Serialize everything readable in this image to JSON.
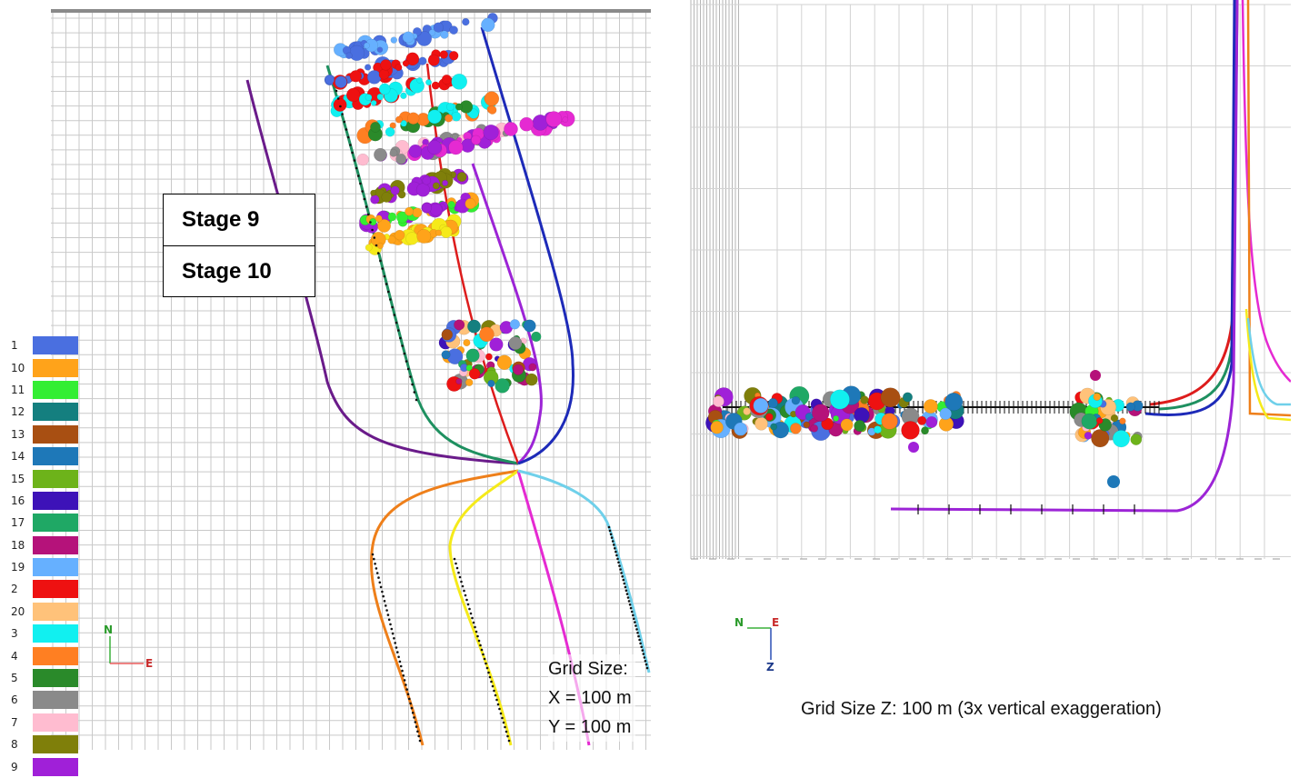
{
  "left_panel": {
    "stage_labels": [
      "Stage 9",
      "Stage 10"
    ],
    "grid_note": [
      "Grid Size:",
      "X = 100 m",
      "Y = 100 m"
    ],
    "compass": {
      "north": "N",
      "east": "E"
    }
  },
  "right_panel": {
    "grid_note": "Grid Size Z: 100 m (3x vertical exaggeration)",
    "compass": {
      "north": "N",
      "east": "E",
      "down": "Z"
    }
  },
  "legend": [
    {
      "label": "1",
      "color": "#4a6fe0"
    },
    {
      "label": "10",
      "color": "#ffa31a"
    },
    {
      "label": "11",
      "color": "#33ee33"
    },
    {
      "label": "12",
      "color": "#147f7f"
    },
    {
      "label": "13",
      "color": "#a84f12"
    },
    {
      "label": "14",
      "color": "#1e78b8"
    },
    {
      "label": "15",
      "color": "#6db31a"
    },
    {
      "label": "16",
      "color": "#3d12b8"
    },
    {
      "label": "17",
      "color": "#1fa865"
    },
    {
      "label": "18",
      "color": "#b5127a"
    },
    {
      "label": "19",
      "color": "#66b0ff"
    },
    {
      "label": "2",
      "color": "#ee1111"
    },
    {
      "label": "20",
      "color": "#ffc27a"
    },
    {
      "label": "3",
      "color": "#11f0f0"
    },
    {
      "label": "4",
      "color": "#ff7f22"
    },
    {
      "label": "5",
      "color": "#2a8a2a"
    },
    {
      "label": "6",
      "color": "#8a8a8a"
    },
    {
      "label": "7",
      "color": "#ffbcd0"
    },
    {
      "label": "8",
      "color": "#7f7f0a"
    },
    {
      "label": "9",
      "color": "#a020d8"
    }
  ]
}
